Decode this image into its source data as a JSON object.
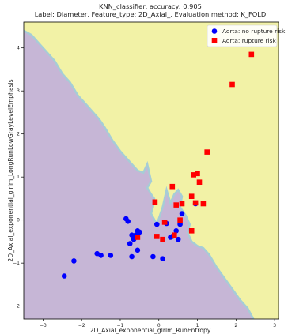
{
  "chart_data": {
    "type": "scatter",
    "title": "KNN_classifier, accuracy: 0.905",
    "subtitle": "Label: Diameter, Feature_type: 2D_Axial_, Evaluation method: K_FOLD",
    "xlabel": "2D_Axial_exponential_glrlm_RunEntropy",
    "ylabel": "2D_Axial_exponential_glrlm_LongRunLowGrayLevelEmphasis",
    "xlim": [
      -3.5,
      3.1
    ],
    "ylim": [
      -2.3,
      4.6
    ],
    "xticks": [
      -3,
      -2,
      -1,
      0,
      1,
      2,
      3
    ],
    "yticks": [
      -2,
      -1,
      0,
      1,
      2,
      3,
      4
    ],
    "grid": false,
    "legend_position": "top-right",
    "decision_regions": {
      "colors": {
        "no_rupture": "#c6b6d6",
        "rupture": "#f2f2a6",
        "boundary": "#a6cdd6"
      },
      "boundary": [
        [
          -3.5,
          4.4
        ],
        [
          -3.3,
          4.3
        ],
        [
          -3.1,
          4.1
        ],
        [
          -2.9,
          3.9
        ],
        [
          -2.7,
          3.7
        ],
        [
          -2.5,
          3.4
        ],
        [
          -2.3,
          3.2
        ],
        [
          -2.1,
          2.9
        ],
        [
          -1.9,
          2.7
        ],
        [
          -1.7,
          2.5
        ],
        [
          -1.55,
          2.35
        ],
        [
          -1.4,
          2.15
        ],
        [
          -1.2,
          1.85
        ],
        [
          -1.0,
          1.6
        ],
        [
          -0.85,
          1.45
        ],
        [
          -0.7,
          1.3
        ],
        [
          -0.55,
          1.15
        ],
        [
          -0.4,
          1.1
        ],
        [
          -0.3,
          1.3
        ],
        [
          -0.25,
          1.1
        ],
        [
          -0.2,
          0.9
        ],
        [
          -0.3,
          0.75
        ],
        [
          -0.2,
          0.6
        ],
        [
          -0.12,
          0.5
        ],
        [
          -0.15,
          0.3
        ],
        [
          -0.2,
          0.15
        ],
        [
          -0.05,
          -0.1
        ],
        [
          0.1,
          0.3
        ],
        [
          0.2,
          0.7
        ],
        [
          0.3,
          0.4
        ],
        [
          0.4,
          0.6
        ],
        [
          0.5,
          0.7
        ],
        [
          0.6,
          0.55
        ],
        [
          0.55,
          0.3
        ],
        [
          0.7,
          0.1
        ],
        [
          0.8,
          -0.1
        ],
        [
          0.75,
          -0.3
        ],
        [
          0.85,
          -0.5
        ],
        [
          1.0,
          -0.6
        ],
        [
          1.15,
          -0.65
        ],
        [
          1.3,
          -0.8
        ],
        [
          1.5,
          -1.1
        ],
        [
          1.7,
          -1.35
        ],
        [
          1.9,
          -1.6
        ],
        [
          2.1,
          -1.85
        ],
        [
          2.3,
          -2.05
        ],
        [
          2.45,
          -2.3
        ]
      ]
    },
    "series": [
      {
        "name": "Aorta: no rupture risk",
        "color": "#0000ff",
        "marker": "circle",
        "x": [
          -2.45,
          -2.2,
          -1.6,
          -1.5,
          -1.25,
          -0.85,
          -0.8,
          -0.75,
          -0.7,
          -0.65,
          -0.6,
          -0.55,
          -0.5,
          -0.55,
          -0.7,
          -0.15,
          -0.05,
          0.1,
          0.2,
          0.3,
          0.35,
          0.45,
          0.5,
          0.55,
          0.6,
          0.95
        ],
        "y": [
          -1.3,
          -0.95,
          -0.78,
          -0.82,
          -0.82,
          0.03,
          -0.03,
          -0.55,
          -0.85,
          -0.45,
          -0.35,
          -0.7,
          -0.28,
          -0.25,
          -0.35,
          -0.85,
          -0.1,
          -0.9,
          -0.08,
          -0.4,
          -0.38,
          -0.25,
          -0.45,
          -0.1,
          0.15,
          0.38
        ]
      },
      {
        "name": "Aorta: rupture risk",
        "color": "#ff0000",
        "marker": "square",
        "x": [
          -0.55,
          -0.1,
          -0.05,
          0.1,
          0.15,
          0.35,
          0.4,
          0.45,
          0.55,
          0.6,
          0.85,
          0.85,
          0.9,
          0.95,
          1.0,
          1.05,
          1.15,
          1.25,
          1.9,
          2.4
        ],
        "y": [
          -0.4,
          0.42,
          -0.38,
          -0.45,
          -0.05,
          0.78,
          -0.35,
          0.35,
          0.0,
          0.38,
          -0.25,
          0.55,
          1.05,
          0.4,
          1.08,
          0.88,
          0.38,
          1.58,
          3.15,
          3.85
        ]
      }
    ]
  }
}
